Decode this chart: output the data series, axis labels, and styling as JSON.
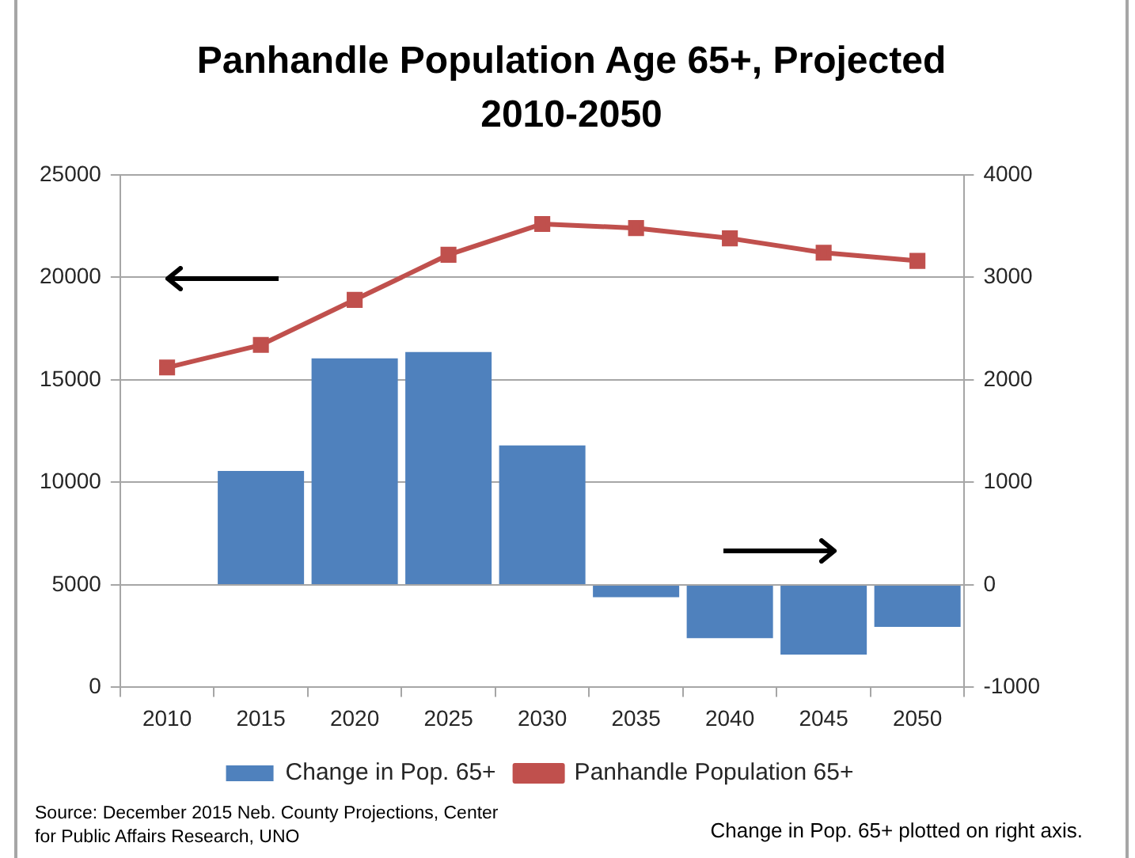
{
  "chart_data": {
    "type": "bar",
    "title": "Panhandle Population Age 65+, Projected 2010-2050",
    "categories": [
      "2010",
      "2015",
      "2020",
      "2025",
      "2030",
      "2035",
      "2040",
      "2045",
      "2050"
    ],
    "series": [
      {
        "name": "Change in Pop. 65+",
        "axis": "y2",
        "color": "#4f81bd",
        "values": [
          null,
          1110,
          2210,
          2270,
          1360,
          -120,
          -520,
          -680,
          -410
        ]
      },
      {
        "name": "Panhandle Population 65+",
        "type": "line",
        "axis": "y",
        "color": "#c0504d",
        "values": [
          15600,
          16700,
          18900,
          21100,
          22600,
          22400,
          21900,
          21200,
          20800
        ]
      }
    ],
    "ylim": [
      0,
      25000
    ],
    "yticks": [
      0,
      5000,
      10000,
      15000,
      20000,
      25000
    ],
    "y2lim": [
      -1000,
      4000
    ],
    "y2ticks": [
      -1000,
      0,
      1000,
      2000,
      3000,
      4000
    ],
    "grid": "y",
    "legend": "bottom",
    "marker": "square",
    "annotations": [
      "Source: December 2015 Neb. County Projections, Center for Public Affairs Research, UNO",
      "Change in Pop. 65+ plotted on right axis."
    ]
  }
}
